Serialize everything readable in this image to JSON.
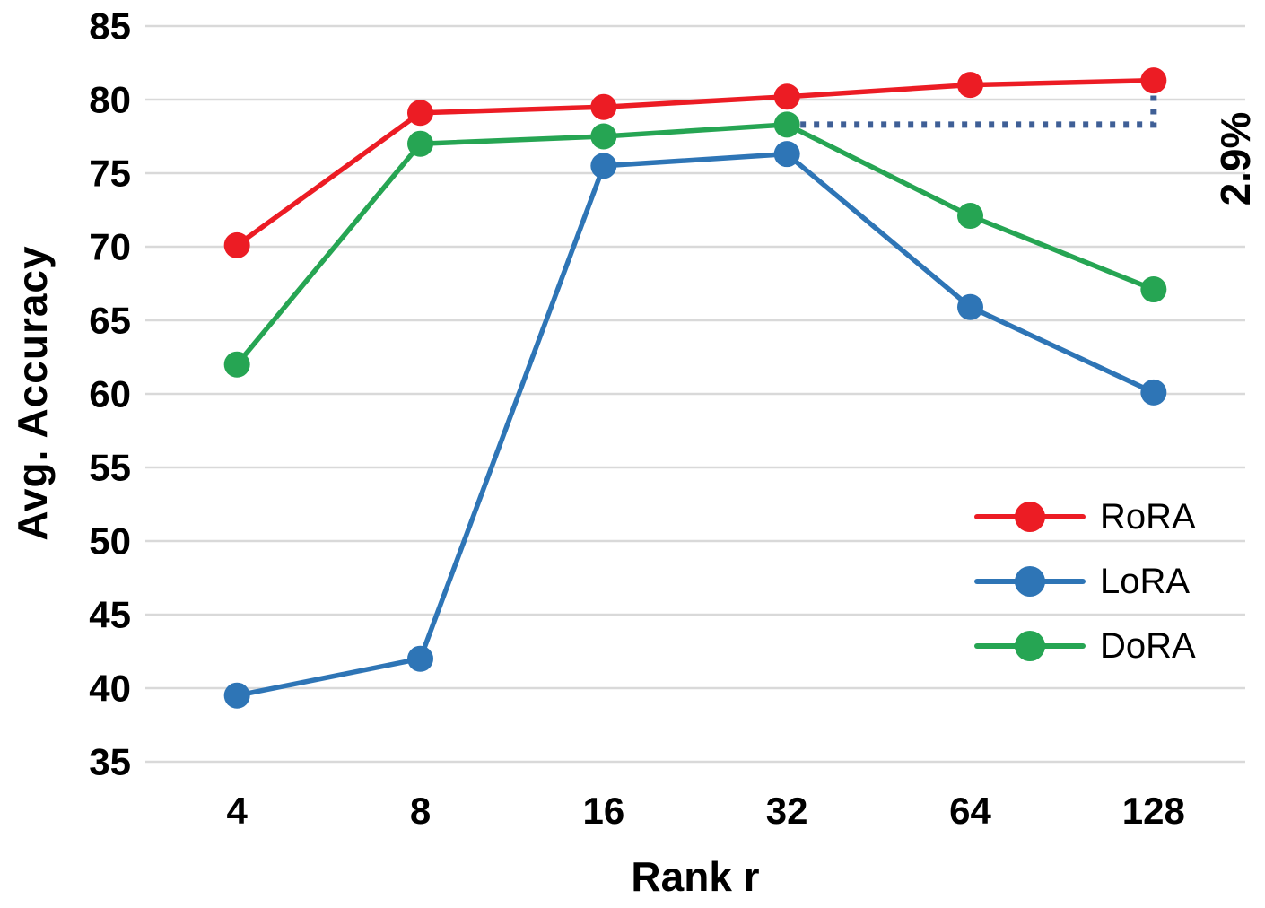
{
  "chart_data": {
    "type": "line",
    "title": "",
    "xlabel": "Rank r",
    "ylabel": "Avg. Accuracy",
    "categories": [
      "4",
      "8",
      "16",
      "32",
      "64",
      "128"
    ],
    "ylim": [
      35,
      85
    ],
    "yticks": [
      85,
      80,
      75,
      70,
      65,
      60,
      55,
      50,
      45,
      40,
      35
    ],
    "grid": "horizontal",
    "gridline_color": "#d9d9d9",
    "background_color": "#ffffff",
    "legend_position": "inside-right",
    "series": [
      {
        "name": "RoRA",
        "color": "#ec1c24",
        "values": [
          70.1,
          79.1,
          79.5,
          80.2,
          81.0,
          81.3
        ]
      },
      {
        "name": "LoRA",
        "color": "#2e75b6",
        "values": [
          39.5,
          42.0,
          75.5,
          76.3,
          65.9,
          60.1
        ]
      },
      {
        "name": "DoRA",
        "color": "#26a553",
        "values": [
          62.0,
          77.0,
          77.5,
          78.3,
          72.1,
          67.1
        ]
      }
    ],
    "annotation": {
      "label": "2.9%",
      "color": "#3f5f96",
      "style": "dotted",
      "from": {
        "category": "32",
        "series": "DoRA",
        "value": 78.3
      },
      "to": {
        "category": "128",
        "series": "RoRA",
        "value": 81.3
      }
    }
  }
}
